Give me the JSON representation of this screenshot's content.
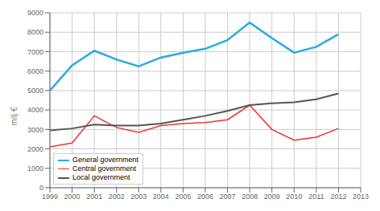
{
  "chart_data": {
    "type": "line",
    "x": [
      1999,
      2000,
      2001,
      2002,
      2003,
      2004,
      2005,
      2006,
      2007,
      2008,
      2009,
      2010,
      2011,
      2012
    ],
    "series": [
      {
        "name": "General government",
        "color": "#29ABE2",
        "values": [
          5000,
          6300,
          7050,
          6600,
          6250,
          6700,
          6950,
          7150,
          7600,
          8500,
          7700,
          6950,
          7250,
          7900
        ]
      },
      {
        "name": "Central government",
        "color": "#EE3333",
        "values": [
          2100,
          2300,
          3700,
          3100,
          2850,
          3200,
          3300,
          3350,
          3500,
          4250,
          3000,
          2450,
          2600,
          3050
        ]
      },
      {
        "name": "Local government",
        "color": "#555555",
        "values": [
          2950,
          3050,
          3250,
          3200,
          3200,
          3300,
          3500,
          3700,
          3950,
          4250,
          4350,
          4400,
          4550,
          4850
        ]
      }
    ],
    "ylabel": "milj €",
    "xlim": [
      1999,
      2013
    ],
    "xticks": [
      1999,
      2000,
      2001,
      2002,
      2003,
      2004,
      2005,
      2006,
      2007,
      2008,
      2009,
      2010,
      2011,
      2012,
      2013
    ],
    "ylim": [
      0,
      9000
    ],
    "yticks": [
      0,
      1000,
      2000,
      3000,
      4000,
      5000,
      6000,
      7000,
      8000,
      9000
    ],
    "grid": true,
    "legend": "lower left"
  }
}
